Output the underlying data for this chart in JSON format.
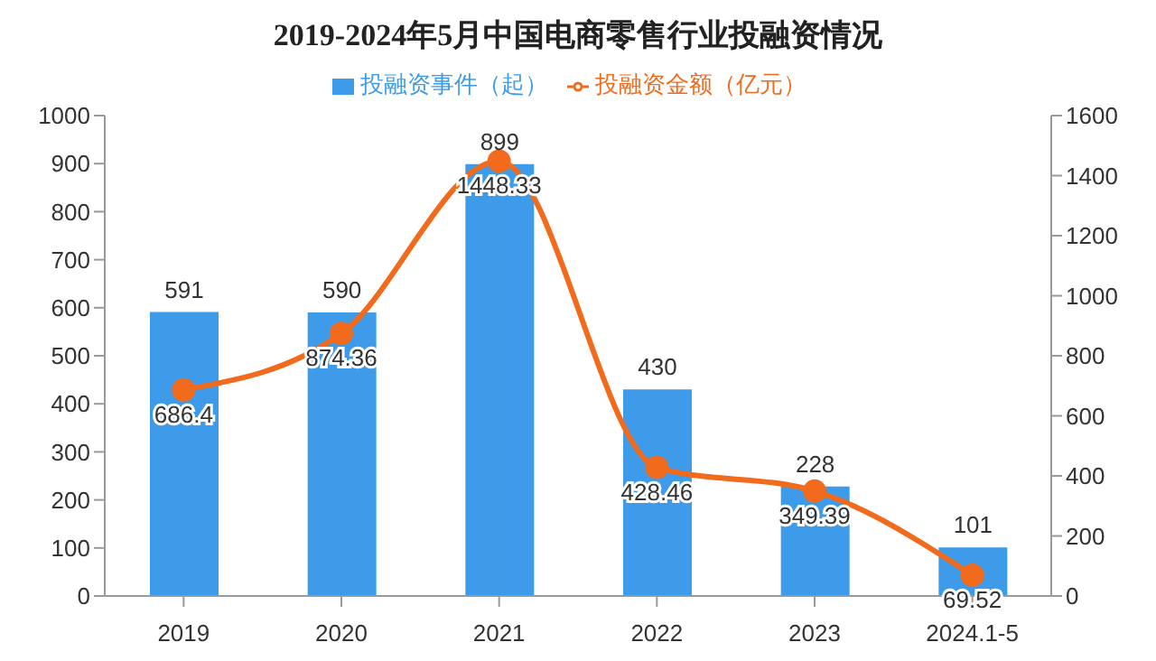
{
  "chart_data": {
    "type": "bar",
    "title": "2019-2024年5月中国电商零售行业投融资情况",
    "categories": [
      "2019",
      "2020",
      "2021",
      "2022",
      "2023",
      "2024.1-5"
    ],
    "series": [
      {
        "name": "投融资事件（起）",
        "color": "#3d9be9",
        "values": [
          591,
          590,
          899,
          430,
          228,
          101
        ]
      },
      {
        "name": "投融资金额（亿元）",
        "type": "line",
        "axis": "y2",
        "color": "#f26b1d",
        "values": [
          686.4,
          874.36,
          1448.33,
          428.46,
          349.39,
          69.52
        ]
      }
    ],
    "ylim": [
      0,
      1000
    ],
    "yticks": [
      0,
      100,
      200,
      300,
      400,
      500,
      600,
      700,
      800,
      900,
      1000
    ],
    "y2lim": [
      0,
      1600
    ],
    "y2ticks": [
      0,
      200,
      400,
      600,
      800,
      1000,
      1200,
      1400,
      1600
    ],
    "legend": "top",
    "marker": "circle",
    "data_labels": true
  }
}
